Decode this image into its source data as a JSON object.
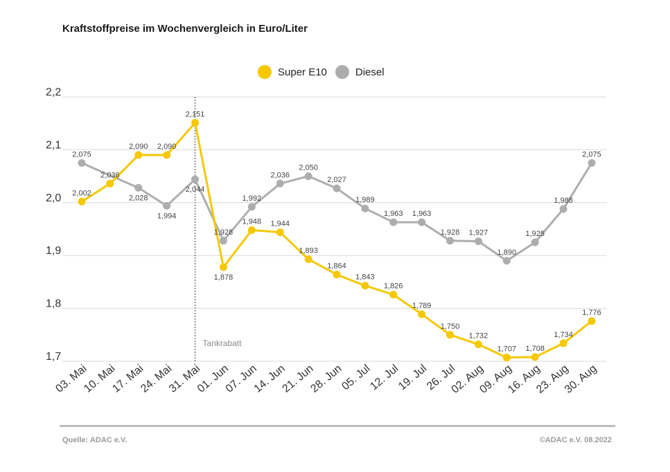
{
  "chart_data": {
    "type": "line",
    "title": "Kraftstoffpreise im Wochenvergleich in Euro/Liter",
    "categories": [
      "03. Mai",
      "10. Mai",
      "17. Mai",
      "24. Mai",
      "31. Mai",
      "01. Jun",
      "07. Jun",
      "14. Jun",
      "21. Jun",
      "28. Jun",
      "05. Jul",
      "12. Jul",
      "19. Jul",
      "26. Jul",
      "02. Aug",
      "09. Aug",
      "16. Aug",
      "23. Aug",
      "30. Aug"
    ],
    "series": [
      {
        "name": "Super E10",
        "color": "#f5c800",
        "values": [
          2.002,
          2.036,
          2.09,
          2.09,
          2.151,
          1.878,
          1.948,
          1.944,
          1.893,
          1.864,
          1.843,
          1.826,
          1.789,
          1.75,
          1.732,
          1.707,
          1.708,
          1.734,
          1.776
        ],
        "labels": [
          "2,002",
          "2,036",
          "2,090",
          "2,090",
          "2,151",
          "1,878",
          "1,948",
          "1,944",
          "1,893",
          "1,864",
          "1,843",
          "1,826",
          "1,789",
          "1,750",
          "1,732",
          "1,707",
          "1,708",
          "1,734",
          "1,776"
        ]
      },
      {
        "name": "Diesel",
        "color": "#adadad",
        "values": [
          2.075,
          null,
          2.028,
          1.994,
          2.044,
          1.928,
          1.992,
          2.036,
          2.05,
          2.027,
          1.989,
          1.963,
          1.963,
          1.928,
          1.927,
          1.89,
          1.925,
          1.988,
          2.075
        ],
        "labels": [
          "2,075",
          "",
          "2,028",
          "1,994",
          "2,044",
          "1,928",
          "1,992",
          "2,036",
          "2,050",
          "2,027",
          "1,989",
          "1,963",
          "1,963",
          "1,928",
          "1,927",
          "1,890",
          "1,925",
          "1,988",
          "2,075"
        ]
      }
    ],
    "yticks": [
      2.2,
      2.1,
      2.0,
      1.9,
      1.8,
      1.7
    ],
    "ytick_labels": [
      "2,2",
      "2,1",
      "2,0",
      "1,9",
      "1,8",
      "1,7"
    ],
    "ylim": [
      1.7,
      2.2
    ],
    "grid": true,
    "legend_placement": "top-center",
    "annotation": {
      "label": "Tankrabatt",
      "category": "31. Mai"
    }
  },
  "footer": {
    "source": "Quelle: ADAC e.V.",
    "copyright": "©ADAC e.V.  08.2022"
  }
}
